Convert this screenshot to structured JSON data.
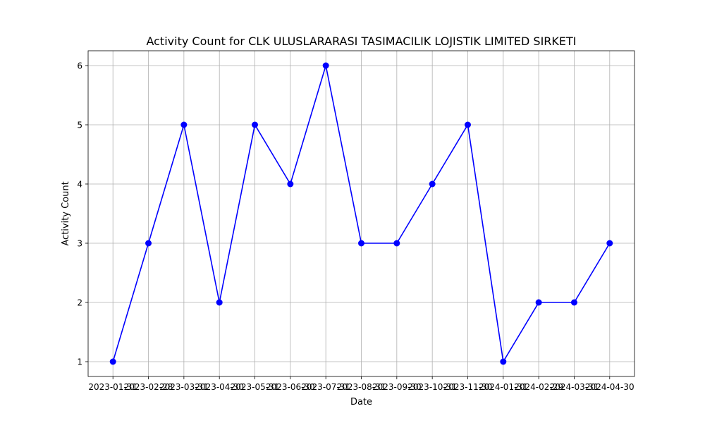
{
  "chart_data": {
    "type": "line",
    "title": "Activity Count for CLK ULUSLARARASI TASIMACILIK LOJISTIK LIMITED SIRKETI",
    "xlabel": "Date",
    "ylabel": "Activity Count",
    "x": [
      "2023-01-31",
      "2023-02-28",
      "2023-03-31",
      "2023-04-30",
      "2023-05-31",
      "2023-06-30",
      "2023-07-31",
      "2023-08-31",
      "2023-09-30",
      "2023-10-31",
      "2023-11-30",
      "2024-01-31",
      "2024-02-29",
      "2024-03-31",
      "2024-04-30"
    ],
    "yticks": [
      1,
      2,
      3,
      4,
      5,
      6
    ],
    "ylim": [
      0.75,
      6.25
    ],
    "series": [
      {
        "values": [
          1,
          3,
          5,
          2,
          5,
          4,
          6,
          3,
          3,
          4,
          5,
          1,
          2,
          2,
          3
        ],
        "color": "#0000ff",
        "marker": "circle"
      }
    ],
    "grid": true
  }
}
